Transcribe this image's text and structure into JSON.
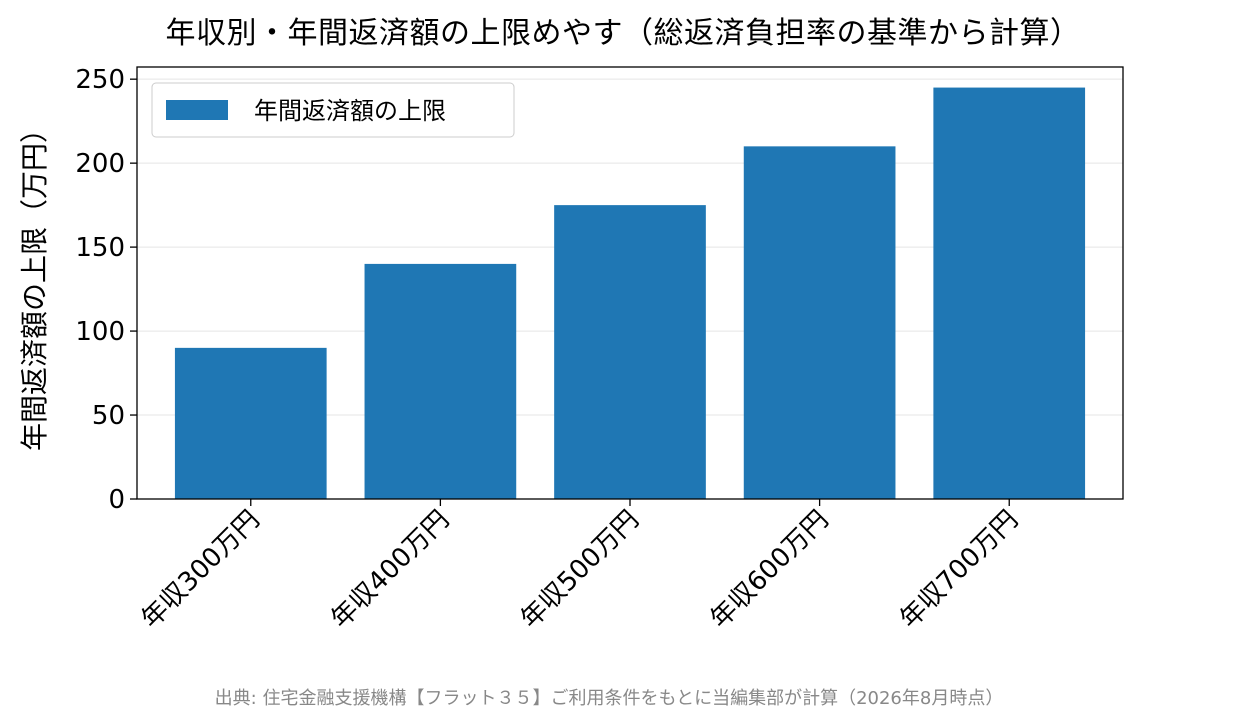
{
  "chart_data": {
    "type": "bar",
    "title": "年収別・年間返済額の上限めやす（総返済負担率の基準から計算）",
    "categories": [
      "年収300万円",
      "年収400万円",
      "年収500万円",
      "年収600万円",
      "年収700万円"
    ],
    "series": [
      {
        "name": "年間返済額の上限",
        "values": [
          90,
          140,
          175,
          210,
          245
        ],
        "color": "#1f77b4"
      }
    ],
    "xlabel": "",
    "ylabel": "年間返済額の上限（万円）",
    "ylim": [
      0,
      257.25
    ],
    "yticks": [
      0,
      50,
      100,
      150,
      200,
      250
    ],
    "grid": true,
    "legend_position": "top-left",
    "x_tick_rotation_deg": 45
  },
  "source_note": "出典: 住宅金融支援機構【フラット３５】ご利用条件をもとに当編集部が計算（2026年8月時点）"
}
